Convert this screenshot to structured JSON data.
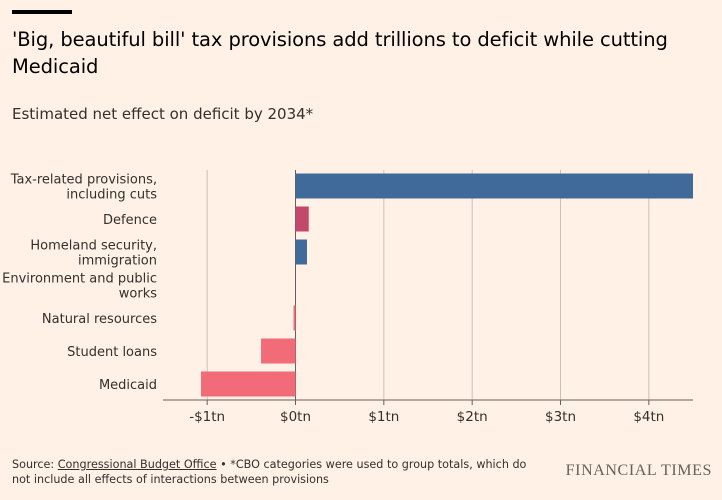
{
  "header": {
    "title": "'Big, beautiful bill' tax provisions add trillions to deficit while cutting Medicaid",
    "subtitle": "Estimated net effect on deficit by 2034*"
  },
  "footer": {
    "source_prefix": "Source: ",
    "source_link": "Congressional Budget Office",
    "source_note": " • *CBO categories were used to group totals, which do not include all effects of interactions between provisions"
  },
  "logo_text": "FINANCIAL TIMES",
  "colors": {
    "background": "#FFF1E5",
    "increase_blue": "#406A9A",
    "increase_red": "#C2496D",
    "decrease": "#F26B78",
    "gridline": "#C9C1BA",
    "baseline": "#66605C"
  },
  "chart_data": {
    "type": "bar",
    "orientation": "horizontal",
    "unit": "tn",
    "categories": [
      [
        "Tax-related provisions,",
        "including cuts"
      ],
      [
        "Defence"
      ],
      [
        "Homeland security,",
        "immigration"
      ],
      [
        "Environment and public",
        "works"
      ],
      [
        "Natural resources"
      ],
      [
        "Student loans"
      ],
      [
        "Medicaid"
      ]
    ],
    "values": [
      4.5,
      0.15,
      0.13,
      0.0,
      -0.02,
      -0.39,
      -1.07
    ],
    "bar_colors": [
      "#406A9A",
      "#C2496D",
      "#406A9A",
      "#F26B78",
      "#F26B78",
      "#F26B78",
      "#F26B78"
    ],
    "xlim": [
      -1.5,
      4.5
    ],
    "xticks": [
      -1,
      0,
      1,
      2,
      3,
      4
    ],
    "xtick_labels": [
      "-$1tn",
      "$0tn",
      "$1tn",
      "$2tn",
      "$3tn",
      "$4tn"
    ],
    "grid": "vertical"
  }
}
